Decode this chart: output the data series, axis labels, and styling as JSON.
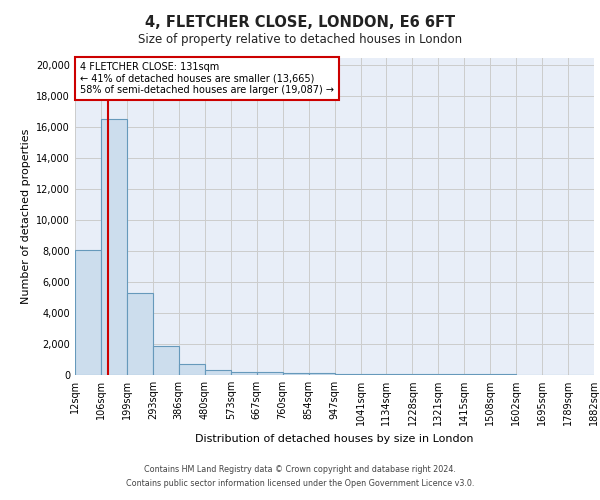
{
  "title1": "4, FLETCHER CLOSE, LONDON, E6 6FT",
  "title2": "Size of property relative to detached houses in London",
  "xlabel": "Distribution of detached houses by size in London",
  "ylabel": "Number of detached properties",
  "bin_edges": [
    12,
    106,
    199,
    293,
    386,
    480,
    573,
    667,
    760,
    854,
    947,
    1041,
    1134,
    1228,
    1321,
    1415,
    1508,
    1602,
    1695,
    1789,
    1882
  ],
  "bar_heights": [
    8100,
    16500,
    5300,
    1850,
    700,
    300,
    200,
    175,
    150,
    100,
    50,
    50,
    45,
    40,
    40,
    35,
    35,
    30,
    30,
    30
  ],
  "bar_color": "#ccdded",
  "bar_edge_color": "#6699bb",
  "bar_linewidth": 0.8,
  "grid_color": "#cccccc",
  "background_color": "#e8eef8",
  "property_size": 131,
  "property_label": "4 FLETCHER CLOSE: 131sqm",
  "annotation_line1": "← 41% of detached houses are smaller (13,665)",
  "annotation_line2": "58% of semi-detached houses are larger (19,087) →",
  "red_line_color": "#cc0000",
  "annotation_box_color": "#ffffff",
  "annotation_box_edge": "#cc0000",
  "ylim": [
    0,
    20500
  ],
  "yticks": [
    0,
    2000,
    4000,
    6000,
    8000,
    10000,
    12000,
    14000,
    16000,
    18000,
    20000
  ],
  "footer1": "Contains HM Land Registry data © Crown copyright and database right 2024.",
  "footer2": "Contains public sector information licensed under the Open Government Licence v3.0."
}
